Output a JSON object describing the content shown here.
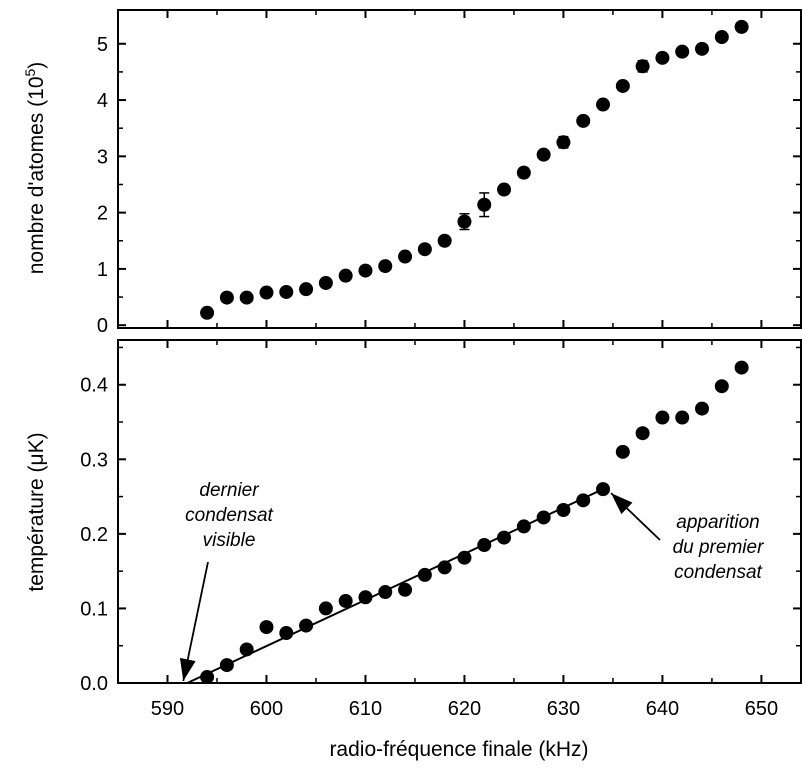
{
  "chart_data": [
    {
      "type": "scatter",
      "panel": "top",
      "ylabel": "nombre d'atomes (10",
      "ylabel_exp": "5",
      "ylabel_close": ")",
      "xlim": [
        585,
        654
      ],
      "ylim": [
        -0.05,
        5.6
      ],
      "yticks": [
        0,
        1,
        2,
        3,
        4,
        5
      ],
      "yticklabels": [
        "0",
        "1",
        "2",
        "3",
        "4",
        "5"
      ],
      "x": [
        594,
        596,
        598,
        600,
        602,
        604,
        606,
        608,
        610,
        612,
        614,
        616,
        618,
        620,
        622,
        624,
        626,
        628,
        630,
        632,
        634,
        636,
        638,
        640,
        642,
        644,
        646,
        648
      ],
      "y": [
        0.22,
        0.49,
        0.49,
        0.58,
        0.59,
        0.64,
        0.75,
        0.88,
        0.97,
        1.05,
        1.22,
        1.35,
        1.5,
        1.84,
        2.14,
        2.41,
        2.71,
        3.03,
        3.25,
        3.63,
        3.92,
        4.25,
        4.6,
        4.75,
        4.86,
        4.91,
        5.12,
        5.3
      ],
      "yerr": [
        0.03,
        0.03,
        0.03,
        0.03,
        0.03,
        0.03,
        0.03,
        0.03,
        0.03,
        0.03,
        0.05,
        0.04,
        0.04,
        0.14,
        0.21,
        0.05,
        0.08,
        0.07,
        0.1,
        0.06,
        0.05,
        0.07,
        0.1,
        0.06,
        0.05,
        0.05,
        0.05,
        0.04
      ]
    },
    {
      "type": "scatter",
      "panel": "bottom",
      "xlabel": "radio-fréquence finale (kHz)",
      "ylabel": "température (μK)",
      "xlim": [
        585,
        654
      ],
      "ylim": [
        0.0,
        0.46
      ],
      "xticks": [
        590,
        600,
        610,
        620,
        630,
        640,
        650
      ],
      "xticklabels": [
        "590",
        "600",
        "610",
        "620",
        "630",
        "640",
        "650"
      ],
      "yticks": [
        0.0,
        0.1,
        0.2,
        0.3,
        0.4
      ],
      "yticklabels": [
        "0.0",
        "0.1",
        "0.2",
        "0.3",
        "0.4"
      ],
      "x": [
        594,
        596,
        598,
        600,
        602,
        604,
        606,
        608,
        610,
        612,
        614,
        616,
        618,
        620,
        622,
        624,
        626,
        628,
        630,
        632,
        634,
        636,
        638,
        640,
        642,
        644,
        646,
        648
      ],
      "y": [
        0.008,
        0.024,
        0.045,
        0.075,
        0.067,
        0.077,
        0.1,
        0.11,
        0.115,
        0.122,
        0.125,
        0.145,
        0.155,
        0.168,
        0.185,
        0.195,
        0.21,
        0.222,
        0.232,
        0.245,
        0.26,
        0.31,
        0.335,
        0.356,
        0.356,
        0.368,
        0.398,
        0.423
      ],
      "fit_line": {
        "x": [
          592,
          634
        ],
        "y": [
          0.0,
          0.26
        ]
      },
      "annotations": [
        {
          "lines": [
            "dernier",
            "condensat",
            "visible"
          ],
          "arrow_to": [
            592,
            0.0
          ]
        },
        {
          "lines": [
            "apparition",
            "du premier",
            "condensat"
          ],
          "arrow_to": [
            634,
            0.26
          ]
        }
      ]
    }
  ]
}
